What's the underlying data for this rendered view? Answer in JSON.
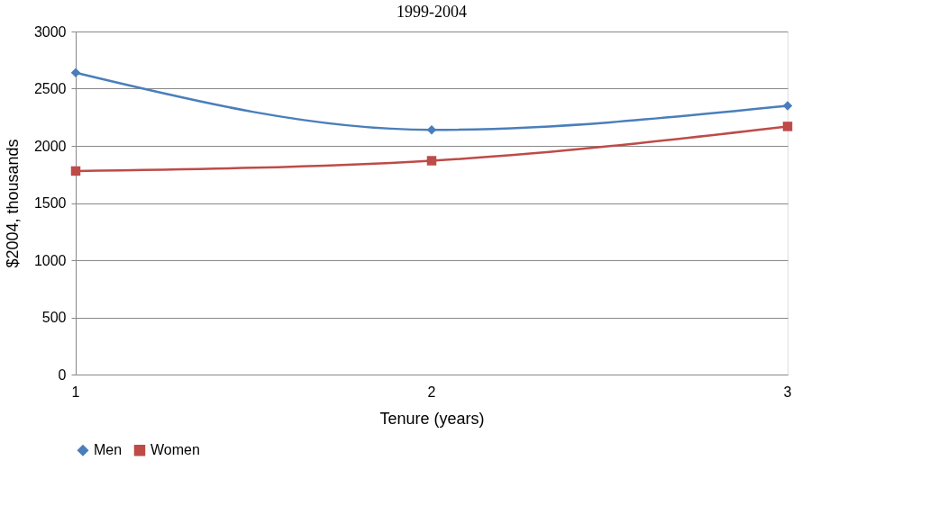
{
  "chart_data": {
    "type": "line",
    "title": "1999-2004",
    "xlabel": "Tenure (years)",
    "ylabel": "$2004,  thousands",
    "x": [
      1,
      2,
      3
    ],
    "xlim": [
      1,
      3
    ],
    "xticks": [
      1,
      2,
      3
    ],
    "ylim": [
      0,
      3000
    ],
    "yticks": [
      0,
      500,
      1000,
      1500,
      2000,
      2500,
      3000
    ],
    "series": [
      {
        "name": "Men",
        "color": "#4a7ebb",
        "marker": "diamond",
        "values": [
          2640,
          2140,
          2350
        ]
      },
      {
        "name": "Women",
        "color": "#be4b48",
        "marker": "square",
        "values": [
          1780,
          1870,
          2170
        ]
      }
    ],
    "grid": "y",
    "legend": "bottom"
  }
}
